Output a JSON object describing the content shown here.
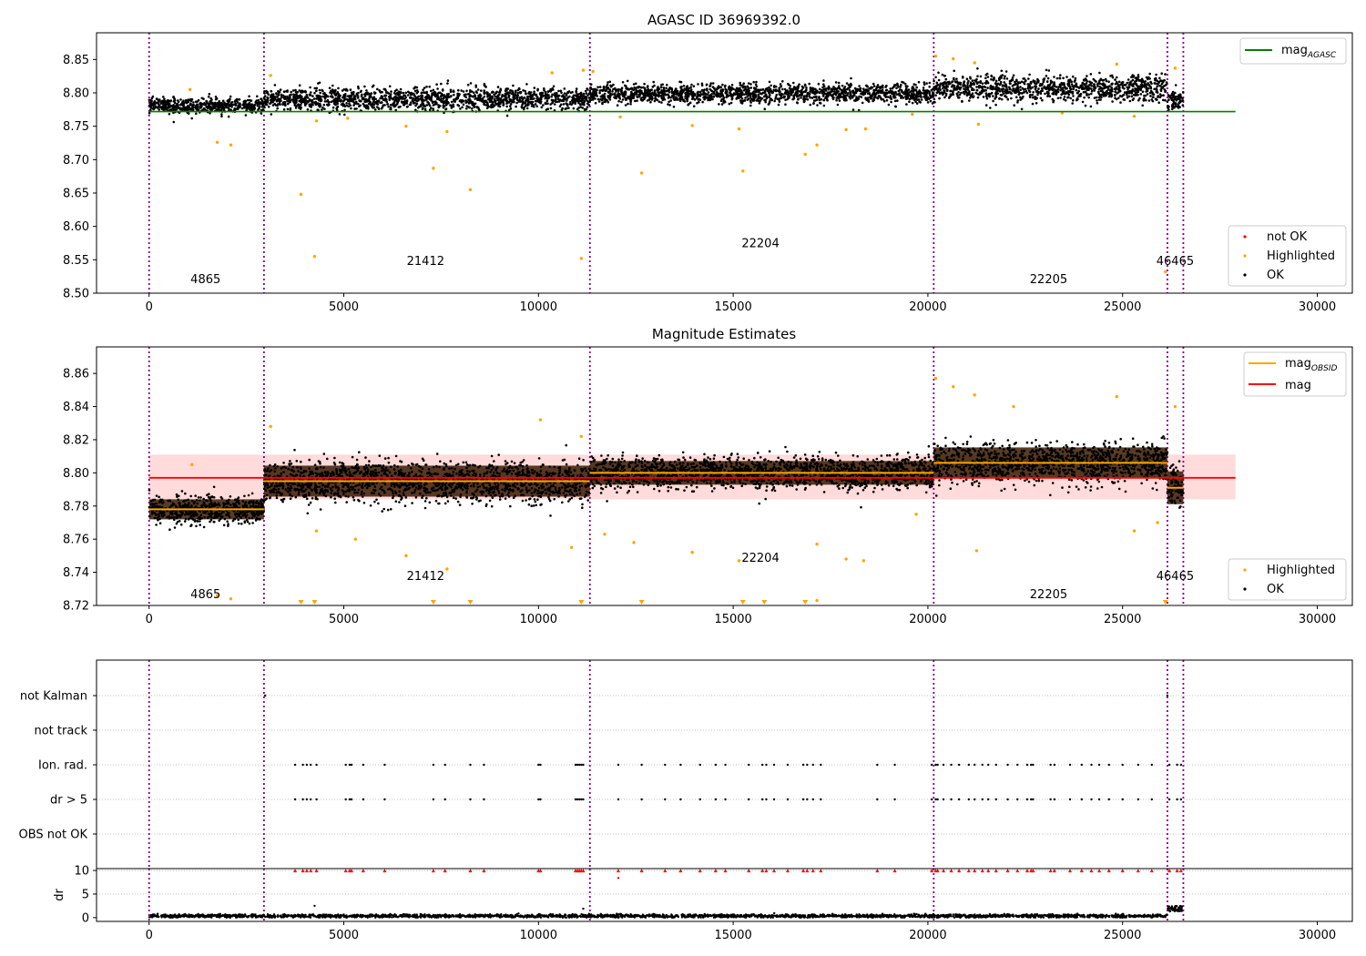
{
  "figure": {
    "description_free": true
  },
  "chart_data": [
    {
      "type": "scatter",
      "title": "AGASC ID 36969392.0",
      "xlim": [
        -1350,
        30900
      ],
      "ylim": [
        8.5,
        8.89
      ],
      "xticks": [
        0,
        5000,
        10000,
        15000,
        20000,
        25000,
        30000
      ],
      "xtick_labels": [
        "0",
        "5000",
        "10000",
        "15000",
        "20000",
        "25000",
        "30000"
      ],
      "yticks": [
        8.5,
        8.55,
        8.6,
        8.65,
        8.7,
        8.75,
        8.8,
        8.85
      ],
      "ytick_labels": [
        "8.50",
        "8.55",
        "8.60",
        "8.65",
        "8.70",
        "8.75",
        "8.80",
        "8.85"
      ],
      "obsid_boundaries": [
        0,
        2950,
        11320,
        20150,
        26150,
        26560
      ],
      "obsid_labels": [
        {
          "text": "4865",
          "x": 1450,
          "y": 8.515
        },
        {
          "text": "21412",
          "x": 7100,
          "y": 8.542
        },
        {
          "text": "22204",
          "x": 15700,
          "y": 8.569
        },
        {
          "text": "22205",
          "x": 23100,
          "y": 8.515
        },
        {
          "text": "46465",
          "x": 26350,
          "y": 8.542
        }
      ],
      "segments": [
        {
          "x0": 0,
          "x1": 2950,
          "mean": 8.781,
          "spread": 0.008
        },
        {
          "x0": 2950,
          "x1": 11320,
          "mean": 8.791,
          "spread": 0.012
        },
        {
          "x0": 11320,
          "x1": 20150,
          "mean": 8.799,
          "spread": 0.01
        },
        {
          "x0": 20150,
          "x1": 26150,
          "mean": 8.807,
          "spread": 0.013
        },
        {
          "x0": 26150,
          "x1": 26560,
          "mean": 8.79,
          "spread": 0.01
        }
      ],
      "series": [
        {
          "name": "mag_AGASC",
          "kind": "hline",
          "color": "#008000",
          "y": 8.772,
          "x0": 0,
          "x1": 27900
        },
        {
          "name": "Highlighted",
          "kind": "points",
          "color": "#ffa500",
          "points": [
            [
              1750,
              8.726
            ],
            [
              2100,
              8.722
            ],
            [
              3900,
              8.648
            ],
            [
              4250,
              8.555
            ],
            [
              7300,
              8.687
            ],
            [
              8250,
              8.655
            ],
            [
              11100,
              8.552
            ],
            [
              12650,
              8.68
            ],
            [
              15250,
              8.683
            ],
            [
              16850,
              8.708
            ],
            [
              17150,
              8.722
            ],
            [
              15150,
              8.746
            ],
            [
              13950,
              8.751
            ],
            [
              7650,
              8.742
            ],
            [
              26100,
              8.532
            ],
            [
              1050,
              8.805
            ],
            [
              3120,
              8.826
            ],
            [
              10350,
              8.83
            ],
            [
              11150,
              8.834
            ],
            [
              11400,
              8.832
            ],
            [
              20200,
              8.855
            ],
            [
              20650,
              8.851
            ],
            [
              21200,
              8.845
            ],
            [
              24850,
              8.843
            ],
            [
              26350,
              8.837
            ],
            [
              25300,
              8.765
            ],
            [
              21300,
              8.753
            ],
            [
              17900,
              8.745
            ],
            [
              18400,
              8.746
            ],
            [
              6600,
              8.75
            ],
            [
              5100,
              8.762
            ],
            [
              4300,
              8.758
            ],
            [
              12100,
              8.764
            ],
            [
              19600,
              8.768
            ],
            [
              23450,
              8.77
            ]
          ]
        },
        {
          "name": "not OK",
          "kind": "points",
          "color": "#ff0000",
          "points": []
        },
        {
          "name": "OK",
          "kind": "density",
          "color": "#000000"
        }
      ],
      "legend_lines": [
        "mag",
        "AGASC"
      ],
      "legend_points": [
        "not OK",
        "Highlighted",
        "OK"
      ],
      "legend_placement": [
        "upper right",
        "lower right"
      ]
    },
    {
      "type": "scatter",
      "title": "Magnitude Estimates",
      "xlim": [
        -1350,
        30900
      ],
      "ylim": [
        8.72,
        8.876
      ],
      "xticks": [
        0,
        5000,
        10000,
        15000,
        20000,
        25000,
        30000
      ],
      "xtick_labels": [
        "0",
        "5000",
        "10000",
        "15000",
        "20000",
        "25000",
        "30000"
      ],
      "yticks": [
        8.72,
        8.74,
        8.76,
        8.78,
        8.8,
        8.82,
        8.84,
        8.86
      ],
      "ytick_labels": [
        "8.72",
        "8.74",
        "8.76",
        "8.78",
        "8.80",
        "8.82",
        "8.84",
        "8.86"
      ],
      "obsid_boundaries": [
        0,
        2950,
        11320,
        20150,
        26150,
        26560
      ],
      "obsid_labels": [
        {
          "text": "4865",
          "x": 1450,
          "y": 8.7245
        },
        {
          "text": "21412",
          "x": 7100,
          "y": 8.7355
        },
        {
          "text": "22204",
          "x": 15700,
          "y": 8.7465
        },
        {
          "text": "22205",
          "x": 23100,
          "y": 8.7245
        },
        {
          "text": "46465",
          "x": 26350,
          "y": 8.7355
        }
      ],
      "mag_band": {
        "y0": 8.784,
        "y1": 8.811,
        "x0": 0,
        "x1": 27900,
        "color": "#ffcccc"
      },
      "series": [
        {
          "name": "mag_OBSID",
          "kind": "steps",
          "color": "#ffa500",
          "steps": [
            {
              "x0": 0,
              "x1": 2950,
              "y": 8.778
            },
            {
              "x0": 2950,
              "x1": 11320,
              "y": 8.795
            },
            {
              "x0": 11320,
              "x1": 20150,
              "y": 8.8
            },
            {
              "x0": 20150,
              "x1": 26150,
              "y": 8.806
            },
            {
              "x0": 26150,
              "x1": 26560,
              "y": 8.791
            }
          ]
        },
        {
          "name": "mag",
          "kind": "hline",
          "color": "#ff0000",
          "y": 8.797,
          "x0": 0,
          "x1": 27900
        },
        {
          "name": "Highlighted",
          "kind": "points",
          "color": "#ffa500",
          "points": [
            [
              1100,
              8.805
            ],
            [
              1750,
              8.726
            ],
            [
              2100,
              8.724
            ],
            [
              3120,
              8.828
            ],
            [
              4300,
              8.765
            ],
            [
              5300,
              8.76
            ],
            [
              6600,
              8.75
            ],
            [
              7650,
              8.742
            ],
            [
              10050,
              8.832
            ],
            [
              10850,
              8.755
            ],
            [
              11100,
              8.822
            ],
            [
              11700,
              8.763
            ],
            [
              12450,
              8.758
            ],
            [
              13950,
              8.752
            ],
            [
              15150,
              8.747
            ],
            [
              17150,
              8.757
            ],
            [
              17150,
              8.723
            ],
            [
              17900,
              8.748
            ],
            [
              18350,
              8.747
            ],
            [
              20200,
              8.857
            ],
            [
              20650,
              8.852
            ],
            [
              21200,
              8.847
            ],
            [
              21250,
              8.753
            ],
            [
              24850,
              8.846
            ],
            [
              25300,
              8.765
            ],
            [
              26350,
              8.84
            ],
            [
              22200,
              8.84
            ],
            [
              19700,
              8.775
            ],
            [
              25900,
              8.77
            ]
          ],
          "clipped": [
            3900,
            4250,
            7300,
            8250,
            11100,
            12650,
            15250,
            15800,
            16850,
            26100
          ]
        },
        {
          "name": "OK",
          "kind": "density",
          "color": "#000000"
        }
      ],
      "segments": [
        {
          "x0": 0,
          "x1": 2950,
          "mean": 8.778,
          "spread": 0.0055
        },
        {
          "x0": 2950,
          "x1": 11320,
          "mean": 8.795,
          "spread": 0.0085
        },
        {
          "x0": 11320,
          "x1": 20150,
          "mean": 8.8,
          "spread": 0.0065
        },
        {
          "x0": 20150,
          "x1": 26150,
          "mean": 8.806,
          "spread": 0.0085
        },
        {
          "x0": 26150,
          "x1": 26560,
          "mean": 8.791,
          "spread": 0.009
        }
      ],
      "legend_lines": [
        "mag",
        "OBSID",
        "mag"
      ],
      "legend_points": [
        "Highlighted",
        "OK"
      ],
      "legend_placement": [
        "upper right",
        "lower right"
      ]
    },
    {
      "type": "scatter",
      "xlim": [
        -1350,
        30900
      ],
      "flag_labels": [
        "not Kalman",
        "not track",
        "Ion. rad.",
        "dr > 5",
        "OBS not OK"
      ],
      "obsid_boundaries": [
        0,
        2950,
        11320,
        20150,
        26150,
        26560
      ],
      "flag_times": [
        3750,
        3950,
        4050,
        4150,
        4300,
        5050,
        5150,
        5200,
        5500,
        6050,
        7300,
        7600,
        8250,
        8600,
        10000,
        10050,
        10950,
        11000,
        11050,
        11100,
        11150,
        12050,
        12650,
        13250,
        13650,
        14150,
        14550,
        14800,
        15400,
        15750,
        15850,
        16050,
        16400,
        16800,
        16900,
        17050,
        17250,
        18700,
        19150,
        20100,
        20200,
        20250,
        20400,
        20600,
        20800,
        21050,
        21200,
        21400,
        21550,
        21750,
        22050,
        22300,
        22550,
        22650,
        22700,
        23150,
        23250,
        23650,
        23950,
        24200,
        24400,
        24650,
        25000,
        25400,
        25750,
        26200,
        26400,
        26500
      ],
      "not_kalman_times": [
        2980,
        26150
      ]
    },
    {
      "type": "scatter",
      "xlim": [
        -1350,
        30900
      ],
      "ylabel": "dr",
      "ylim": [
        -0.8,
        10.4
      ],
      "yticks": [
        0,
        5,
        10
      ],
      "ytick_labels": [
        "0",
        "5",
        "10"
      ],
      "xticks": [
        0,
        5000,
        10000,
        15000,
        20000,
        25000,
        30000
      ],
      "xtick_labels": [
        "0",
        "5000",
        "10000",
        "15000",
        "20000",
        "25000",
        "30000"
      ],
      "obsid_boundaries": [
        0,
        2950,
        11320,
        20150,
        26150,
        26560
      ],
      "capped_value": 10,
      "outliers": [
        [
          4250,
          2.5
        ],
        [
          12050,
          8.4
        ],
        [
          11150,
          1.9
        ]
      ],
      "series": [
        {
          "name": "dr",
          "kind": "density",
          "color": "#000000",
          "mean": 0.35,
          "spread": 0.25
        },
        {
          "name": "dr > 5",
          "kind": "capped",
          "color": "#ff0000"
        }
      ]
    }
  ]
}
